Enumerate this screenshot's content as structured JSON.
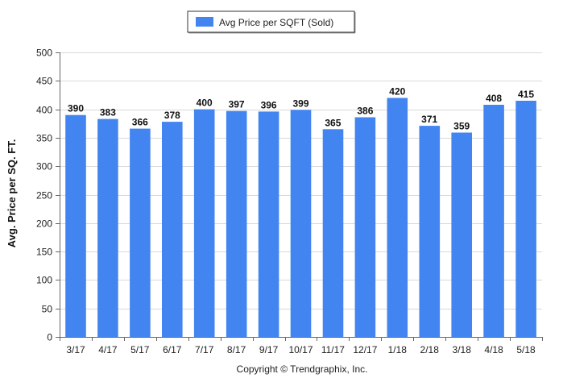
{
  "chart_data": {
    "type": "bar",
    "categories": [
      "3/17",
      "4/17",
      "5/17",
      "6/17",
      "7/17",
      "8/17",
      "9/17",
      "10/17",
      "11/17",
      "12/17",
      "1/18",
      "2/18",
      "3/18",
      "4/18",
      "5/18"
    ],
    "series": [
      {
        "name": "Avg Price per SQFT (Sold)",
        "values": [
          390,
          383,
          366,
          378,
          400,
          397,
          396,
          399,
          365,
          386,
          420,
          371,
          359,
          408,
          415
        ]
      }
    ],
    "ylabel": "Avg. Price per SQ. FT.",
    "xlabel": "",
    "ylim": [
      0,
      500
    ],
    "yticks": [
      0,
      50,
      100,
      150,
      200,
      250,
      300,
      350,
      400,
      450,
      500
    ],
    "grid": true,
    "legend_position": "top-center",
    "data_labels": true,
    "bar_color": "#4385f0"
  },
  "footer": {
    "copyright": "Copyright © Trendgraphix, Inc."
  }
}
